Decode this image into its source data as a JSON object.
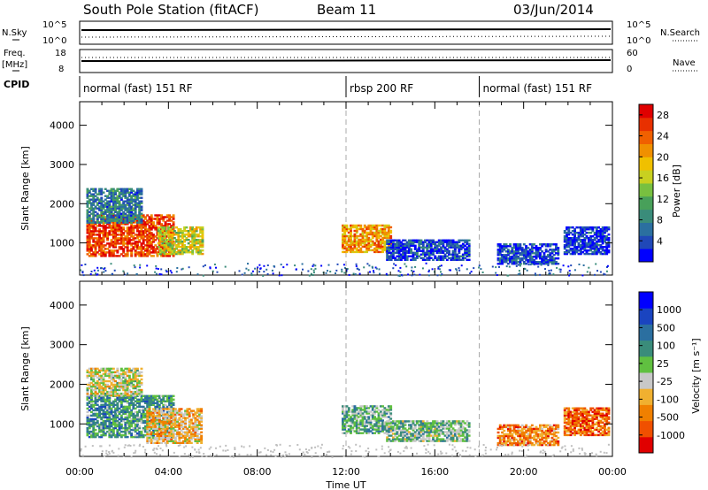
{
  "header": {
    "station": "South Pole Station (fitACF)",
    "beam": "Beam 11",
    "date": "03/Jun/2014"
  },
  "strips": {
    "nsky_label": "N.Sky",
    "nsearch_label": "N.Search",
    "freq_label_line1": "Freq.",
    "freq_label_line2": "[MHz]",
    "nave_label": "Nave",
    "cpid_label": "CPID",
    "nsky_ticks": [
      "10^5",
      "10^0"
    ],
    "nsearch_ticks": [
      "10^5",
      "10^0"
    ],
    "freq_ticks": [
      "18",
      "8"
    ],
    "nave_ticks": [
      "60",
      "0"
    ]
  },
  "cpid_segments": [
    {
      "label": "normal (fast) 151 RF",
      "start": 0
    },
    {
      "label": "rbsp 200 RF",
      "start": 12
    },
    {
      "label": "normal (fast) 151 RF",
      "start": 18
    }
  ],
  "colors": {
    "power": [
      "#0000ff",
      "#2048b8",
      "#2b6fa0",
      "#3a8c7a",
      "#48a05a",
      "#78c040",
      "#c8d020",
      "#f0c000",
      "#f09000",
      "#f06000",
      "#e83000",
      "#e00000"
    ],
    "velocity": [
      "#e00000",
      "#f05000",
      "#f08000",
      "#f0b030",
      "#c8c8c8",
      "#60c040",
      "#3a8c7a",
      "#2b6fa0",
      "#1a44c0",
      "#0000ff"
    ]
  },
  "chart_data": [
    {
      "type": "heatmap",
      "name": "power",
      "xlabel": "Time UT",
      "ylabel": "Slant Range [km]",
      "xlim": [
        0,
        24
      ],
      "ylim": [
        180,
        4600
      ],
      "x_ticks": [
        "00:00",
        "04:00",
        "08:00",
        "12:00",
        "16:00",
        "20:00",
        "00:00"
      ],
      "y_ticks": [
        "1000",
        "2000",
        "3000",
        "4000"
      ],
      "colorbar_label": "Power [dB]",
      "colorbar_ticks": [
        "4",
        "8",
        "12",
        "16",
        "20",
        "24",
        "28"
      ],
      "colorbar_range": [
        0,
        30
      ],
      "regions": [
        {
          "t0": 0.3,
          "t1": 4.2,
          "r0": 650,
          "r1": 1700,
          "level": 0.85
        },
        {
          "t0": 0.3,
          "t1": 2.8,
          "r0": 1500,
          "r1": 2400,
          "level": 0.25
        },
        {
          "t0": 3.5,
          "t1": 5.5,
          "r0": 700,
          "r1": 1400,
          "level": 0.55
        },
        {
          "t0": 11.8,
          "t1": 14.0,
          "r0": 750,
          "r1": 1450,
          "level": 0.7
        },
        {
          "t0": 13.8,
          "t1": 17.5,
          "r0": 550,
          "r1": 1050,
          "level": 0.12
        },
        {
          "t0": 18.8,
          "t1": 21.5,
          "r0": 450,
          "r1": 950,
          "level": 0.12
        },
        {
          "t0": 21.8,
          "t1": 23.8,
          "r0": 700,
          "r1": 1400,
          "level": 0.1
        }
      ]
    },
    {
      "type": "heatmap",
      "name": "velocity",
      "xlabel": "Time UT",
      "ylabel": "Slant Range [km]",
      "xlim": [
        0,
        24
      ],
      "ylim": [
        180,
        4600
      ],
      "x_ticks": [
        "00:00",
        "04:00",
        "08:00",
        "12:00",
        "16:00",
        "20:00",
        "00:00"
      ],
      "y_ticks": [
        "1000",
        "2000",
        "3000",
        "4000"
      ],
      "colorbar_label": "Velocity [m s⁻¹]",
      "colorbar_ticks": [
        "1000",
        "500",
        "100",
        "25",
        "-25",
        "-100",
        "-500",
        "-1000"
      ],
      "regions": [
        {
          "t0": 0.3,
          "t1": 4.2,
          "r0": 650,
          "r1": 1700,
          "level": 0.65
        },
        {
          "t0": 0.3,
          "t1": 2.8,
          "r0": 1700,
          "r1": 2400,
          "level": 0.45
        },
        {
          "t0": 3.0,
          "t1": 5.5,
          "r0": 500,
          "r1": 1400,
          "level": 0.35
        },
        {
          "t0": 11.8,
          "t1": 14.0,
          "r0": 750,
          "r1": 1450,
          "level": 0.6
        },
        {
          "t0": 13.8,
          "t1": 17.5,
          "r0": 550,
          "r1": 1050,
          "level": 0.55
        },
        {
          "t0": 18.8,
          "t1": 21.5,
          "r0": 450,
          "r1": 950,
          "level": 0.25
        },
        {
          "t0": 21.8,
          "t1": 23.8,
          "r0": 700,
          "r1": 1400,
          "level": 0.2
        }
      ]
    }
  ]
}
